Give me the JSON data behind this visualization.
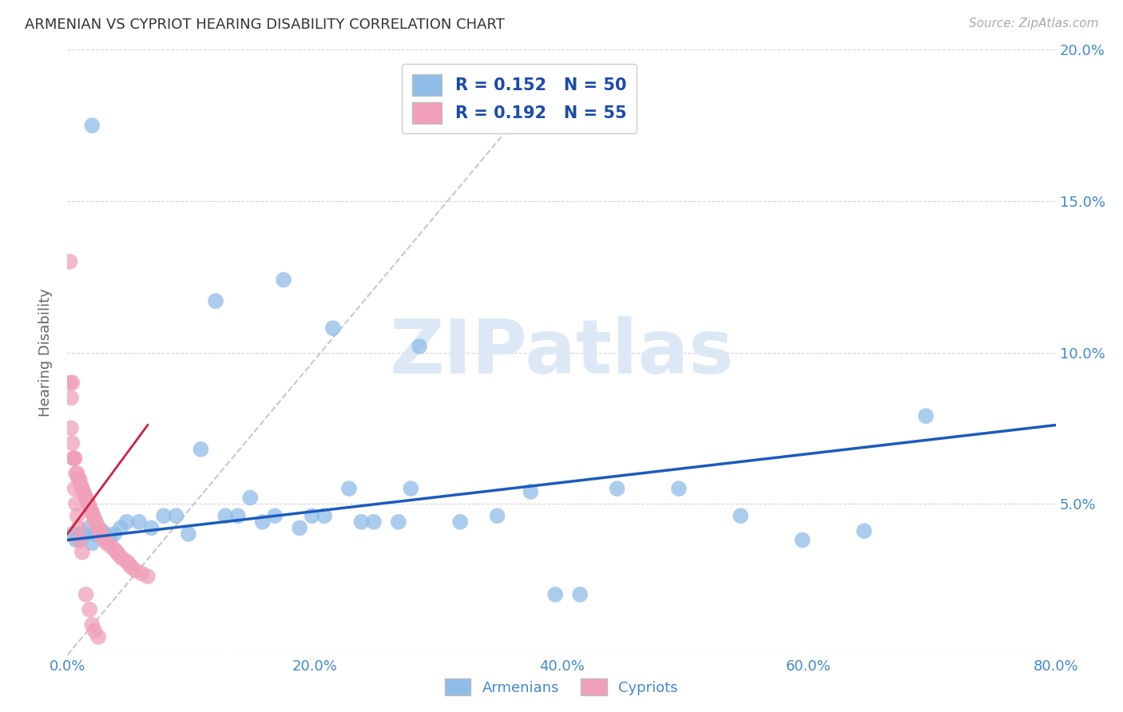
{
  "title": "ARMENIAN VS CYPRIOT HEARING DISABILITY CORRELATION CHART",
  "source": "Source: ZipAtlas.com",
  "ylabel": "Hearing Disability",
  "xlim": [
    0.0,
    0.8
  ],
  "ylim": [
    0.0,
    0.2
  ],
  "xticks": [
    0.0,
    0.2,
    0.4,
    0.6,
    0.8
  ],
  "yticks": [
    0.0,
    0.05,
    0.1,
    0.15,
    0.2
  ],
  "xtick_labels": [
    "0.0%",
    "20.0%",
    "40.0%",
    "60.0%",
    "80.0%"
  ],
  "ytick_labels_right": [
    "",
    "5.0%",
    "10.0%",
    "15.0%",
    "20.0%"
  ],
  "background_color": "#ffffff",
  "grid_color": "#d0d0d0",
  "tick_color": "#4488cc",
  "title_color": "#333333",
  "watermark_text": "ZIPatlas",
  "watermark_color": "#dce8f5",
  "armenian_color": "#90bce8",
  "cypriot_color": "#f0a0b8",
  "armenian_line_color": "#1a5bbf",
  "cypriot_line_color": "#cc2244",
  "legend_R_armenian": "R = 0.152",
  "legend_N_armenian": "N = 50",
  "legend_R_cypriot": "R = 0.192",
  "legend_N_cypriot": "N = 55",
  "armenian_scatter_x": [
    0.02,
    0.12,
    0.175,
    0.215,
    0.285,
    0.375,
    0.445,
    0.495,
    0.545,
    0.595,
    0.645,
    0.695,
    0.004,
    0.007,
    0.009,
    0.011,
    0.014,
    0.017,
    0.02,
    0.022,
    0.025,
    0.028,
    0.03,
    0.034,
    0.038,
    0.043,
    0.048,
    0.058,
    0.068,
    0.078,
    0.088,
    0.098,
    0.108,
    0.128,
    0.138,
    0.148,
    0.158,
    0.168,
    0.188,
    0.198,
    0.208,
    0.228,
    0.238,
    0.248,
    0.268,
    0.278,
    0.318,
    0.348,
    0.395,
    0.415
  ],
  "armenian_scatter_y": [
    0.175,
    0.117,
    0.124,
    0.108,
    0.102,
    0.054,
    0.055,
    0.055,
    0.046,
    0.038,
    0.041,
    0.079,
    0.04,
    0.038,
    0.04,
    0.038,
    0.04,
    0.042,
    0.037,
    0.04,
    0.04,
    0.041,
    0.04,
    0.039,
    0.04,
    0.042,
    0.044,
    0.044,
    0.042,
    0.046,
    0.046,
    0.04,
    0.068,
    0.046,
    0.046,
    0.052,
    0.044,
    0.046,
    0.042,
    0.046,
    0.046,
    0.055,
    0.044,
    0.044,
    0.044,
    0.055,
    0.044,
    0.046,
    0.02,
    0.02
  ],
  "cypriot_scatter_x": [
    0.002,
    0.003,
    0.004,
    0.005,
    0.006,
    0.007,
    0.008,
    0.009,
    0.01,
    0.011,
    0.012,
    0.013,
    0.014,
    0.015,
    0.016,
    0.017,
    0.018,
    0.019,
    0.02,
    0.021,
    0.022,
    0.023,
    0.024,
    0.025,
    0.026,
    0.027,
    0.028,
    0.03,
    0.032,
    0.035,
    0.038,
    0.04,
    0.042,
    0.044,
    0.048,
    0.05,
    0.052,
    0.055,
    0.06,
    0.065,
    0.002,
    0.003,
    0.004,
    0.005,
    0.006,
    0.007,
    0.008,
    0.009,
    0.01,
    0.012,
    0.015,
    0.018,
    0.02,
    0.022,
    0.025
  ],
  "cypriot_scatter_y": [
    0.13,
    0.085,
    0.09,
    0.065,
    0.065,
    0.06,
    0.06,
    0.058,
    0.058,
    0.056,
    0.055,
    0.054,
    0.053,
    0.052,
    0.051,
    0.05,
    0.049,
    0.048,
    0.047,
    0.046,
    0.045,
    0.044,
    0.043,
    0.042,
    0.041,
    0.04,
    0.039,
    0.038,
    0.037,
    0.036,
    0.035,
    0.034,
    0.033,
    0.032,
    0.031,
    0.03,
    0.029,
    0.028,
    0.027,
    0.026,
    0.09,
    0.075,
    0.07,
    0.065,
    0.055,
    0.05,
    0.046,
    0.042,
    0.038,
    0.034,
    0.02,
    0.015,
    0.01,
    0.008,
    0.006
  ],
  "armenian_trend_x": [
    0.0,
    0.8
  ],
  "armenian_trend_y": [
    0.038,
    0.076
  ],
  "cypriot_trend_x": [
    0.0,
    0.065
  ],
  "cypriot_trend_y": [
    0.04,
    0.076
  ],
  "diag_line_x": [
    0.0,
    0.4
  ],
  "diag_line_y": [
    0.0,
    0.195
  ]
}
